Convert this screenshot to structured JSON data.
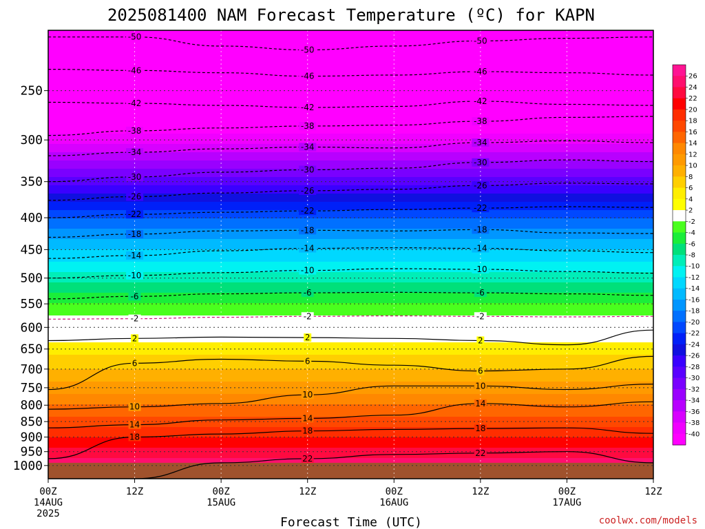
{
  "chart_data": {
    "type": "heatmap",
    "title": "2025081400 NAM Forecast Temperature (ºC) for KAPN",
    "xlabel": "Forecast Time (UTC)",
    "ylabel": "",
    "credit": "coolwx.com/models",
    "x_ticks": [
      {
        "hour": 0,
        "line1": "00Z",
        "line2": "14AUG",
        "line3": "2025"
      },
      {
        "hour": 12,
        "line1": "12Z",
        "line2": "",
        "line3": ""
      },
      {
        "hour": 24,
        "line1": "00Z",
        "line2": "15AUG",
        "line3": ""
      },
      {
        "hour": 36,
        "line1": "12Z",
        "line2": "",
        "line3": ""
      },
      {
        "hour": 48,
        "line1": "00Z",
        "line2": "16AUG",
        "line3": ""
      },
      {
        "hour": 60,
        "line1": "12Z",
        "line2": "",
        "line3": ""
      },
      {
        "hour": 72,
        "line1": "00Z",
        "line2": "17AUG",
        "line3": ""
      },
      {
        "hour": 84,
        "line1": "12Z",
        "line2": "",
        "line3": ""
      }
    ],
    "xlim": [
      0,
      84
    ],
    "y_ticks": [
      "250",
      "300",
      "350",
      "400",
      "450",
      "500",
      "550",
      "600",
      "650",
      "700",
      "750",
      "800",
      "850",
      "900",
      "950",
      "1000"
    ],
    "ylim": [
      1050,
      200
    ],
    "y_scale": "log-pressure",
    "ground_level_hpa": 990,
    "colorbar": {
      "labels": [
        "26",
        "24",
        "22",
        "20",
        "18",
        "16",
        "14",
        "12",
        "10",
        "8",
        "6",
        "4",
        "2",
        "-2",
        "-4",
        "-6",
        "-8",
        "-10",
        "-12",
        "-14",
        "-16",
        "-18",
        "-20",
        "-22",
        "-24",
        "-26",
        "-28",
        "-30",
        "-32",
        "-34",
        "-36",
        "-38",
        "-40"
      ],
      "colors": [
        "#ff1493",
        "#ff0f6e",
        "#ff0a40",
        "#ff0000",
        "#ff2e00",
        "#ff4800",
        "#ff6600",
        "#ff8800",
        "#ff9a00",
        "#ffb000",
        "#ffcf00",
        "#ffee00",
        "#ffff00",
        "#ffffff",
        "#4aff1e",
        "#1aee3a",
        "#00e07a",
        "#00eeb8",
        "#00f2f2",
        "#00d8ff",
        "#00baff",
        "#0096ff",
        "#0070ff",
        "#0048ff",
        "#0020f8",
        "#1010e0",
        "#3a00ff",
        "#5a00ff",
        "#7a00ff",
        "#9a00ff",
        "#b800ff",
        "#d800ff",
        "#f000ff",
        "#ff00ff"
      ]
    },
    "temperature_profile": {
      "pressure_hpa": [
        200,
        250,
        300,
        350,
        400,
        450,
        500,
        550,
        600,
        650,
        700,
        750,
        800,
        850,
        900,
        950,
        990
      ],
      "temperature_c": [
        -55,
        -48,
        -39,
        -29,
        -20,
        -14,
        -9,
        -4,
        0,
        3,
        6,
        9,
        12,
        15,
        18,
        21,
        23
      ]
    },
    "contours": [
      {
        "value": -50,
        "pressure_hpa": [
          205,
          205,
          212,
          215,
          212,
          208,
          206,
          205
        ]
      },
      {
        "value": -46,
        "pressure_hpa": [
          231,
          232,
          234,
          237,
          236,
          233,
          234,
          236
        ]
      },
      {
        "value": -42,
        "pressure_hpa": [
          261,
          262,
          264,
          266,
          265,
          260,
          263,
          264
        ]
      },
      {
        "value": -38,
        "pressure_hpa": [
          295,
          290,
          287,
          285,
          284,
          280,
          276,
          275
        ]
      },
      {
        "value": -34,
        "pressure_hpa": [
          318,
          314,
          310,
          308,
          309,
          303,
          301,
          303
        ]
      },
      {
        "value": -30,
        "pressure_hpa": [
          350,
          344,
          338,
          335,
          333,
          326,
          323,
          325
        ]
      },
      {
        "value": -26,
        "pressure_hpa": [
          375,
          370,
          365,
          362,
          360,
          355,
          352,
          353
        ]
      },
      {
        "value": -22,
        "pressure_hpa": [
          400,
          395,
          392,
          390,
          388,
          386,
          384,
          385
        ]
      },
      {
        "value": -18,
        "pressure_hpa": [
          430,
          425,
          420,
          419,
          420,
          418,
          423,
          424
        ]
      },
      {
        "value": -14,
        "pressure_hpa": [
          465,
          460,
          452,
          448,
          447,
          448,
          452,
          455
        ]
      },
      {
        "value": -10,
        "pressure_hpa": [
          500,
          495,
          490,
          486,
          483,
          484,
          488,
          491
        ]
      },
      {
        "value": -6,
        "pressure_hpa": [
          540,
          535,
          530,
          528,
          527,
          528,
          530,
          533
        ]
      },
      {
        "value": -2,
        "pressure_hpa": [
          582,
          581,
          578,
          576,
          575,
          576,
          577,
          576
        ]
      },
      {
        "value": 2,
        "pressure_hpa": [
          630,
          625,
          622,
          623,
          625,
          630,
          640,
          606
        ]
      },
      {
        "value": 6,
        "pressure_hpa": [
          755,
          685,
          675,
          680,
          690,
          705,
          700,
          668
        ]
      },
      {
        "value": 10,
        "pressure_hpa": [
          812,
          805,
          795,
          770,
          745,
          745,
          755,
          740
        ]
      },
      {
        "value": 14,
        "pressure_hpa": [
          870,
          860,
          845,
          840,
          830,
          795,
          805,
          790
        ]
      },
      {
        "value": 18,
        "pressure_hpa": [
          975,
          900,
          890,
          880,
          875,
          872,
          870,
          888
        ]
      },
      {
        "value": 22,
        "pressure_hpa": [
          1050,
          1050,
          990,
          975,
          960,
          955,
          950,
          990
        ]
      }
    ],
    "grid": true
  }
}
